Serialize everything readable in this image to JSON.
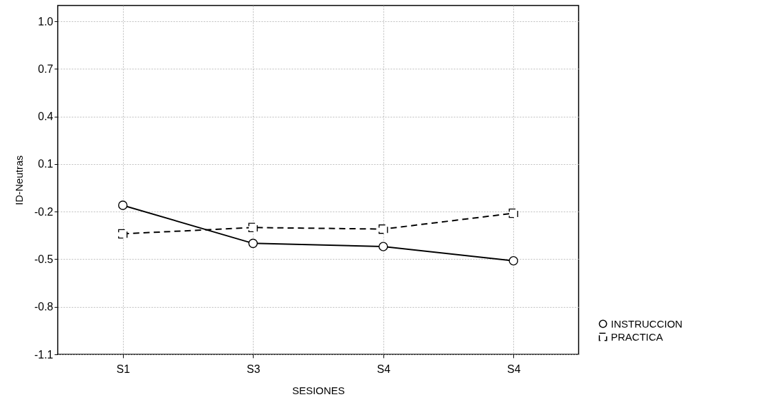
{
  "chart_data": {
    "type": "line",
    "xlabel": "SESIONES",
    "ylabel": "ID-Neutras",
    "categories": [
      "S1",
      "S3",
      "S4",
      "S4"
    ],
    "series": [
      {
        "name": "INSTRUCCION",
        "color": "#000000",
        "marker": "circle",
        "line_style": "solid",
        "values": [
          -0.16,
          -0.4,
          -0.42,
          -0.51
        ]
      },
      {
        "name": "PRACTICA",
        "color": "#000000",
        "marker": "square",
        "line_style": "dashed",
        "values": [
          -0.34,
          -0.3,
          -0.31,
          -0.21
        ]
      }
    ],
    "ylim": [
      -1.1,
      1.1
    ],
    "yticks": [
      {
        "value": -1.1,
        "label": "-1.1"
      },
      {
        "value": -0.8,
        "label": "-0.8"
      },
      {
        "value": -0.5,
        "label": "-0.5"
      },
      {
        "value": -0.2,
        "label": "-0.2"
      },
      {
        "value": 0.1,
        "label": "0.1"
      },
      {
        "value": 0.4,
        "label": "0.4"
      },
      {
        "value": 0.7,
        "label": "0.7"
      },
      {
        "value": 1.0,
        "label": "1.0"
      }
    ],
    "grid": true,
    "legend": "bottom right"
  }
}
